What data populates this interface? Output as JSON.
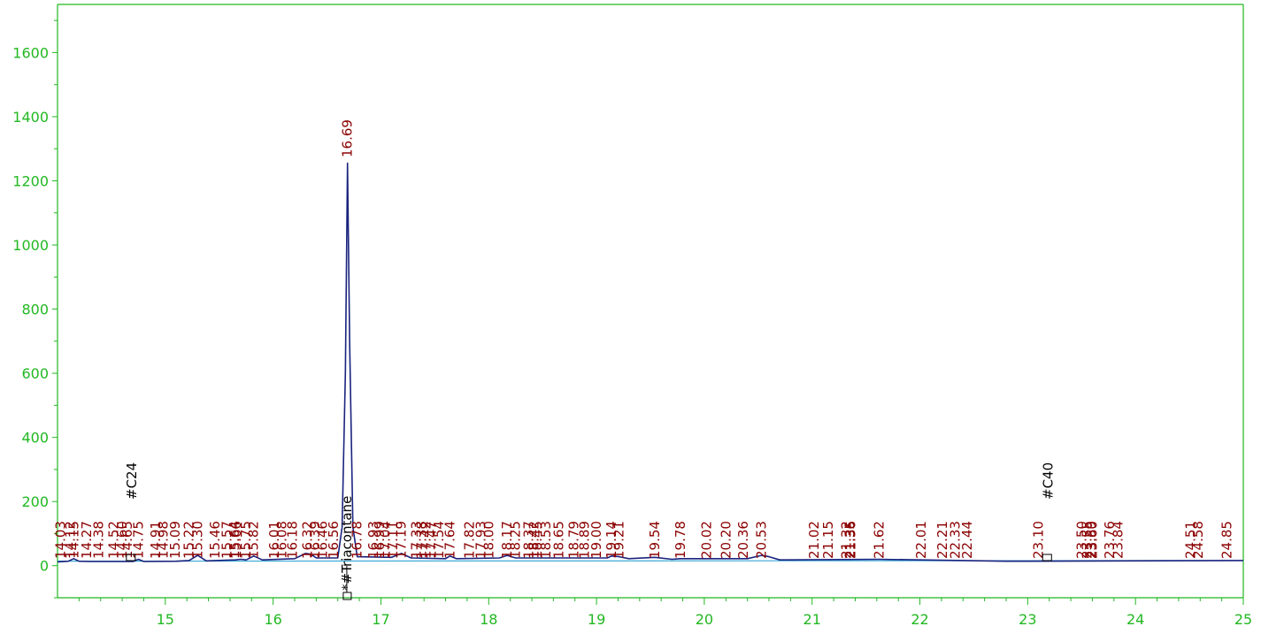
{
  "chart_data": {
    "type": "line",
    "title": "",
    "xlabel": "",
    "ylabel": "",
    "xlim": [
      14.0,
      25.0
    ],
    "ylim": [
      -100,
      1750
    ],
    "x_ticks": [
      "15",
      "16",
      "17",
      "18",
      "19",
      "20",
      "21",
      "22",
      "23",
      "24",
      "25"
    ],
    "y_ticks": [
      "0",
      "200",
      "400",
      "600",
      "800",
      "1000",
      "1200",
      "1400",
      "1600"
    ],
    "grid": false,
    "colors": {
      "axis": "#22b822",
      "trace": "#1a237e",
      "baseline": "#3fa9d8",
      "peak_label": "#8b0000",
      "marker_label": "#000000"
    },
    "series": [
      {
        "x": [
          14.0,
          14.1,
          14.15,
          14.2,
          14.3,
          14.7,
          14.75,
          14.8,
          15.1,
          15.22,
          15.3,
          15.38,
          15.65,
          15.7,
          15.75,
          15.82,
          15.9,
          16.2,
          16.3,
          16.35,
          16.4,
          16.6,
          16.64,
          16.67,
          16.69,
          16.71,
          16.74,
          16.78,
          17.1,
          17.19,
          17.28,
          17.6,
          17.64,
          17.7,
          18.1,
          18.17,
          18.25,
          19.1,
          19.14,
          19.21,
          19.3,
          19.54,
          19.7,
          19.78,
          20.4,
          20.53,
          20.6,
          20.7,
          21.62,
          22.8,
          23.0,
          25.0
        ],
        "y": [
          12,
          14,
          22,
          14,
          13,
          13,
          20,
          13,
          14,
          16,
          32,
          15,
          18,
          20,
          18,
          30,
          18,
          22,
          38,
          36,
          24,
          24,
          120,
          600,
          1255,
          700,
          120,
          28,
          26,
          38,
          24,
          22,
          30,
          22,
          24,
          32,
          24,
          24,
          30,
          28,
          22,
          26,
          20,
          22,
          22,
          32,
          28,
          18,
          20,
          14,
          14,
          16
        ]
      }
    ],
    "peak_labels": [
      "14.03",
      "14.12",
      "14.15",
      "14.27",
      "14.38",
      "14.52",
      "14.60",
      "14.65",
      "14.75",
      "14.91",
      "14.98",
      "15.09",
      "15.22",
      "15.30",
      "15.46",
      "15.57",
      "15.64",
      "15.66",
      "15.75",
      "15.82",
      "16.01",
      "16.08",
      "16.18",
      "16.32",
      "16.39",
      "16.46",
      "16.56",
      "16.69",
      "16.78",
      "16.93",
      "16.99",
      "17.04",
      "17.11",
      "17.19",
      "17.33",
      "17.38",
      "17.42",
      "17.47",
      "17.54",
      "17.64",
      "17.82",
      "17.93",
      "18.00",
      "18.17",
      "18.25",
      "18.37",
      "18.42",
      "18.45",
      "18.53",
      "18.65",
      "18.79",
      "18.89",
      "19.00",
      "19.14",
      "19.21",
      "19.54",
      "19.78",
      "20.02",
      "20.20",
      "20.36",
      "20.53",
      "21.02",
      "21.15",
      "21.32",
      "21.35",
      "21.36",
      "21.62",
      "22.01",
      "22.21",
      "22.33",
      "22.44",
      "23.10",
      "23.50",
      "23.55",
      "23.59",
      "23.60",
      "23.76",
      "23.84",
      "24.51",
      "24.58",
      "24.85"
    ],
    "markers": [
      {
        "label": "#C24",
        "x": 14.68
      },
      {
        "label": "*#Triacontane",
        "x": 16.7
      },
      {
        "label": "#C40",
        "x": 23.18
      }
    ]
  }
}
